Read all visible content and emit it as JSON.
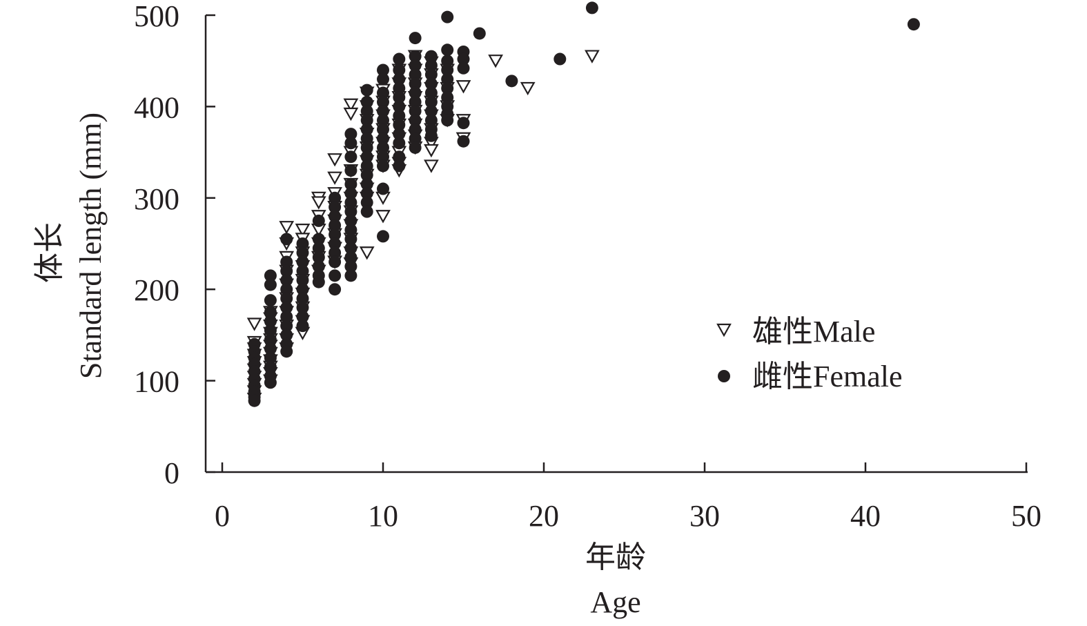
{
  "chart_data": {
    "type": "scatter",
    "xlabel_cn": "年龄",
    "xlabel_en": "Age",
    "ylabel_cn": "体长",
    "ylabel_en": "Standard length (mm)",
    "xlim": [
      -1,
      50
    ],
    "ylim": [
      0,
      500
    ],
    "xticks": [
      0,
      10,
      20,
      30,
      40,
      50
    ],
    "yticks": [
      0,
      100,
      200,
      300,
      400,
      500
    ],
    "grid": false,
    "legend_position": "right",
    "series": [
      {
        "name": "雄性Male",
        "marker": "open-triangle-down",
        "color": "#231f20",
        "points": [
          [
            2,
            162
          ],
          [
            2,
            142
          ],
          [
            2,
            135
          ],
          [
            2,
            128
          ],
          [
            2,
            120
          ],
          [
            2,
            112
          ],
          [
            2,
            104
          ],
          [
            2,
            96
          ],
          [
            2,
            88
          ],
          [
            2,
            80
          ],
          [
            3,
            175
          ],
          [
            3,
            168
          ],
          [
            3,
            160
          ],
          [
            3,
            152
          ],
          [
            3,
            145
          ],
          [
            3,
            138
          ],
          [
            3,
            130
          ],
          [
            3,
            122
          ],
          [
            3,
            115
          ],
          [
            3,
            108
          ],
          [
            3,
            100
          ],
          [
            4,
            268
          ],
          [
            4,
            250
          ],
          [
            4,
            235
          ],
          [
            4,
            220
          ],
          [
            4,
            205
          ],
          [
            4,
            190
          ],
          [
            4,
            175
          ],
          [
            4,
            160
          ],
          [
            4,
            145
          ],
          [
            4,
            135
          ],
          [
            5,
            265
          ],
          [
            5,
            255
          ],
          [
            5,
            240
          ],
          [
            5,
            225
          ],
          [
            5,
            210
          ],
          [
            5,
            195
          ],
          [
            5,
            180
          ],
          [
            5,
            165
          ],
          [
            5,
            152
          ],
          [
            6,
            300
          ],
          [
            6,
            295
          ],
          [
            6,
            280
          ],
          [
            6,
            265
          ],
          [
            6,
            250
          ],
          [
            6,
            235
          ],
          [
            6,
            220
          ],
          [
            7,
            342
          ],
          [
            7,
            322
          ],
          [
            7,
            305
          ],
          [
            7,
            290
          ],
          [
            7,
            275
          ],
          [
            7,
            260
          ],
          [
            7,
            245
          ],
          [
            7,
            230
          ],
          [
            8,
            402
          ],
          [
            8,
            392
          ],
          [
            8,
            350
          ],
          [
            8,
            330
          ],
          [
            8,
            315
          ],
          [
            8,
            300
          ],
          [
            8,
            285
          ],
          [
            8,
            270
          ],
          [
            8,
            255
          ],
          [
            8,
            240
          ],
          [
            8,
            228
          ],
          [
            9,
            415
          ],
          [
            9,
            400
          ],
          [
            9,
            385
          ],
          [
            9,
            370
          ],
          [
            9,
            355
          ],
          [
            9,
            340
          ],
          [
            9,
            325
          ],
          [
            9,
            310
          ],
          [
            9,
            300
          ],
          [
            9,
            240
          ],
          [
            10,
            418
          ],
          [
            10,
            405
          ],
          [
            10,
            390
          ],
          [
            10,
            375
          ],
          [
            10,
            360
          ],
          [
            10,
            345
          ],
          [
            10,
            335
          ],
          [
            10,
            300
          ],
          [
            10,
            280
          ],
          [
            11,
            440
          ],
          [
            11,
            425
          ],
          [
            11,
            410
          ],
          [
            11,
            395
          ],
          [
            11,
            380
          ],
          [
            11,
            365
          ],
          [
            11,
            350
          ],
          [
            11,
            338
          ],
          [
            11,
            330
          ],
          [
            12,
            455
          ],
          [
            12,
            440
          ],
          [
            12,
            425
          ],
          [
            12,
            410
          ],
          [
            12,
            395
          ],
          [
            12,
            380
          ],
          [
            12,
            368
          ],
          [
            12,
            355
          ],
          [
            13,
            448
          ],
          [
            13,
            435
          ],
          [
            13,
            420
          ],
          [
            13,
            405
          ],
          [
            13,
            390
          ],
          [
            13,
            375
          ],
          [
            13,
            360
          ],
          [
            13,
            352
          ],
          [
            13,
            335
          ],
          [
            14,
            440
          ],
          [
            14,
            420
          ],
          [
            14,
            400
          ],
          [
            14,
            385
          ],
          [
            15,
            422
          ],
          [
            15,
            385
          ],
          [
            15,
            365
          ],
          [
            17,
            450
          ],
          [
            19,
            420
          ],
          [
            23,
            455
          ]
        ]
      },
      {
        "name": "雌性Female",
        "marker": "filled-circle",
        "color": "#231f20",
        "points": [
          [
            2,
            140
          ],
          [
            2,
            132
          ],
          [
            2,
            125
          ],
          [
            2,
            118
          ],
          [
            2,
            110
          ],
          [
            2,
            102
          ],
          [
            2,
            95
          ],
          [
            2,
            88
          ],
          [
            2,
            82
          ],
          [
            2,
            78
          ],
          [
            3,
            215
          ],
          [
            3,
            205
          ],
          [
            3,
            188
          ],
          [
            3,
            175
          ],
          [
            3,
            165
          ],
          [
            3,
            155
          ],
          [
            3,
            145
          ],
          [
            3,
            135
          ],
          [
            3,
            125
          ],
          [
            3,
            115
          ],
          [
            3,
            105
          ],
          [
            3,
            98
          ],
          [
            4,
            255
          ],
          [
            4,
            230
          ],
          [
            4,
            220
          ],
          [
            4,
            210
          ],
          [
            4,
            200
          ],
          [
            4,
            190
          ],
          [
            4,
            180
          ],
          [
            4,
            170
          ],
          [
            4,
            160
          ],
          [
            4,
            150
          ],
          [
            4,
            140
          ],
          [
            4,
            132
          ],
          [
            5,
            250
          ],
          [
            5,
            240
          ],
          [
            5,
            230
          ],
          [
            5,
            220
          ],
          [
            5,
            210
          ],
          [
            5,
            200
          ],
          [
            5,
            190
          ],
          [
            5,
            180
          ],
          [
            5,
            170
          ],
          [
            5,
            160
          ],
          [
            6,
            275
          ],
          [
            6,
            255
          ],
          [
            6,
            245
          ],
          [
            6,
            235
          ],
          [
            6,
            225
          ],
          [
            6,
            215
          ],
          [
            6,
            208
          ],
          [
            7,
            300
          ],
          [
            7,
            290
          ],
          [
            7,
            280
          ],
          [
            7,
            270
          ],
          [
            7,
            260
          ],
          [
            7,
            250
          ],
          [
            7,
            240
          ],
          [
            7,
            230
          ],
          [
            7,
            215
          ],
          [
            7,
            200
          ],
          [
            8,
            370
          ],
          [
            8,
            360
          ],
          [
            8,
            345
          ],
          [
            8,
            330
          ],
          [
            8,
            315
          ],
          [
            8,
            305
          ],
          [
            8,
            295
          ],
          [
            8,
            285
          ],
          [
            8,
            275
          ],
          [
            8,
            265
          ],
          [
            8,
            255
          ],
          [
            8,
            245
          ],
          [
            8,
            235
          ],
          [
            8,
            225
          ],
          [
            8,
            215
          ],
          [
            9,
            418
          ],
          [
            9,
            405
          ],
          [
            9,
            395
          ],
          [
            9,
            385
          ],
          [
            9,
            375
          ],
          [
            9,
            365
          ],
          [
            9,
            355
          ],
          [
            9,
            345
          ],
          [
            9,
            335
          ],
          [
            9,
            325
          ],
          [
            9,
            315
          ],
          [
            9,
            305
          ],
          [
            9,
            295
          ],
          [
            9,
            285
          ],
          [
            10,
            440
          ],
          [
            10,
            430
          ],
          [
            10,
            415
          ],
          [
            10,
            405
          ],
          [
            10,
            395
          ],
          [
            10,
            385
          ],
          [
            10,
            375
          ],
          [
            10,
            365
          ],
          [
            10,
            355
          ],
          [
            10,
            345
          ],
          [
            10,
            335
          ],
          [
            10,
            310
          ],
          [
            10,
            258
          ],
          [
            11,
            452
          ],
          [
            11,
            440
          ],
          [
            11,
            430
          ],
          [
            11,
            420
          ],
          [
            11,
            410
          ],
          [
            11,
            400
          ],
          [
            11,
            390
          ],
          [
            11,
            380
          ],
          [
            11,
            370
          ],
          [
            11,
            360
          ],
          [
            11,
            345
          ],
          [
            11,
            335
          ],
          [
            12,
            475
          ],
          [
            12,
            455
          ],
          [
            12,
            445
          ],
          [
            12,
            435
          ],
          [
            12,
            425
          ],
          [
            12,
            415
          ],
          [
            12,
            405
          ],
          [
            12,
            395
          ],
          [
            12,
            385
          ],
          [
            12,
            375
          ],
          [
            12,
            365
          ],
          [
            12,
            355
          ],
          [
            13,
            455
          ],
          [
            13,
            445
          ],
          [
            13,
            435
          ],
          [
            13,
            425
          ],
          [
            13,
            415
          ],
          [
            13,
            405
          ],
          [
            13,
            395
          ],
          [
            13,
            385
          ],
          [
            13,
            375
          ],
          [
            13,
            368
          ],
          [
            14,
            498
          ],
          [
            14,
            462
          ],
          [
            14,
            450
          ],
          [
            14,
            440
          ],
          [
            14,
            430
          ],
          [
            14,
            420
          ],
          [
            14,
            410
          ],
          [
            14,
            400
          ],
          [
            14,
            392
          ],
          [
            14,
            385
          ],
          [
            15,
            460
          ],
          [
            15,
            452
          ],
          [
            15,
            442
          ],
          [
            15,
            382
          ],
          [
            15,
            362
          ],
          [
            16,
            480
          ],
          [
            18,
            428
          ],
          [
            21,
            452
          ],
          [
            23,
            508
          ],
          [
            43,
            490
          ]
        ]
      }
    ]
  }
}
